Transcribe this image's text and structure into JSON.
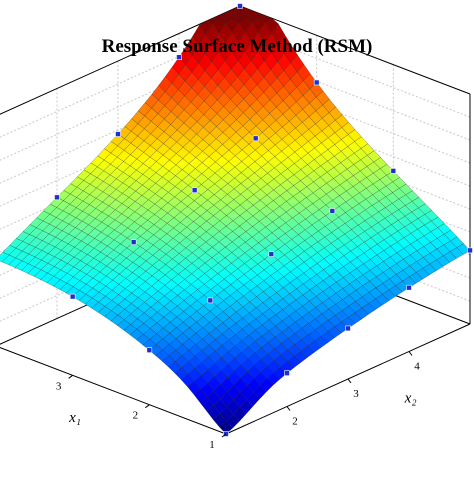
{
  "chart_data": {
    "type": "surface",
    "title": "Response Surface Method (RSM)",
    "xlabel": "x₁",
    "ylabel": "x₂",
    "zlabel": "",
    "x1_ticks": [
      "1",
      "2",
      "3"
    ],
    "x2_ticks": [
      "2",
      "3",
      "4"
    ],
    "x1_range": [
      1,
      4
    ],
    "x2_range": [
      1,
      5
    ],
    "z_range": [
      0,
      1
    ],
    "grid": true,
    "colormap": "jet",
    "colors": {
      "edge": "#1a1a1a",
      "design_points": "#1f2fd0",
      "box": "#000000",
      "grid": "#c8c8c8"
    }
  }
}
